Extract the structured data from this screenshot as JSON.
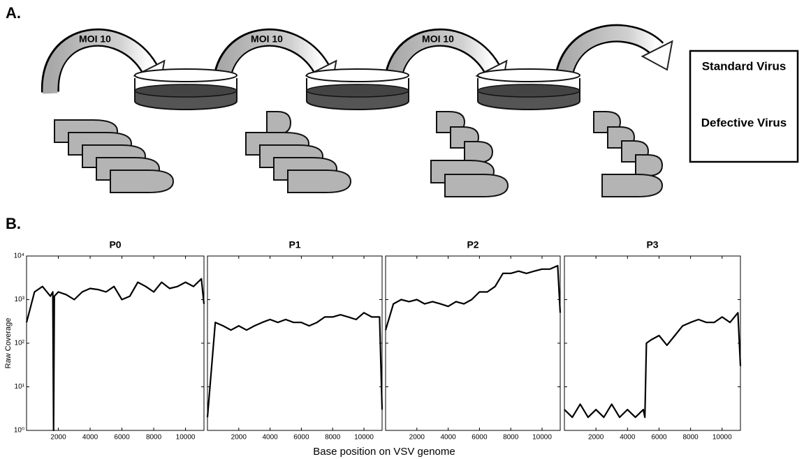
{
  "panel_a": {
    "label": "A.",
    "arrows": [
      "MOI 10",
      "MOI 10",
      "MOI 10"
    ],
    "legend": [
      "Standard Virus",
      "Defective Virus"
    ]
  },
  "panel_b": {
    "label": "B.",
    "xlabel": "Base position on VSV genome",
    "ylabel": "Raw Coverage"
  },
  "chart_data": [
    {
      "type": "line",
      "title": "P0",
      "color": "#000000",
      "log_y": true,
      "x": [
        0,
        500,
        1000,
        1500,
        1650,
        1700,
        1750,
        2000,
        2500,
        3000,
        3500,
        4000,
        4500,
        5000,
        5500,
        6000,
        6500,
        7000,
        7500,
        8000,
        8500,
        9000,
        9500,
        10000,
        10500,
        11000,
        11161
      ],
      "values": [
        300,
        1500,
        2000,
        1200,
        1500,
        1,
        1200,
        1500,
        1300,
        1000,
        1500,
        1800,
        1700,
        1500,
        2000,
        1000,
        1200,
        2500,
        2000,
        1500,
        2500,
        1800,
        2000,
        2500,
        2000,
        3000,
        800
      ],
      "xlim": [
        0,
        11161
      ],
      "xticks": [
        2000,
        4000,
        6000,
        8000,
        10000
      ],
      "ylim": [
        1,
        10000
      ],
      "yticks": [
        {
          "value": 1,
          "label": "10⁰"
        },
        {
          "value": 10,
          "label": "10¹"
        },
        {
          "value": 100,
          "label": "10²"
        },
        {
          "value": 1000,
          "label": "10³"
        },
        {
          "value": 10000,
          "label": "10⁴"
        }
      ]
    },
    {
      "type": "line",
      "title": "P1",
      "color": "#000000",
      "log_y": true,
      "x": [
        0,
        500,
        1000,
        1500,
        2000,
        2500,
        3000,
        3500,
        4000,
        4500,
        5000,
        5500,
        6000,
        6500,
        7000,
        7500,
        8000,
        8500,
        9000,
        9500,
        10000,
        10500,
        11000,
        11161
      ],
      "values": [
        2,
        300,
        250,
        200,
        250,
        200,
        250,
        300,
        350,
        300,
        350,
        300,
        300,
        250,
        300,
        400,
        400,
        450,
        400,
        350,
        500,
        400,
        400,
        3
      ],
      "xlim": [
        0,
        11161
      ],
      "xticks": [
        2000,
        4000,
        6000,
        8000,
        10000
      ],
      "ylim": [
        1,
        10000
      ],
      "yticks": [
        1,
        10,
        100,
        1000,
        10000
      ]
    },
    {
      "type": "line",
      "title": "P2",
      "color": "#000000",
      "log_y": true,
      "x": [
        0,
        500,
        1000,
        1500,
        2000,
        2500,
        3000,
        3500,
        4000,
        4500,
        5000,
        5500,
        6000,
        6500,
        7000,
        7500,
        8000,
        8500,
        9000,
        9500,
        10000,
        10500,
        11000,
        11161
      ],
      "values": [
        200,
        800,
        1000,
        900,
        1000,
        800,
        900,
        800,
        700,
        900,
        800,
        1000,
        1500,
        1500,
        2000,
        4000,
        4000,
        4500,
        4000,
        4500,
        5000,
        5000,
        6000,
        500
      ],
      "xlim": [
        0,
        11161
      ],
      "xticks": [
        2000,
        4000,
        6000,
        8000,
        10000
      ],
      "ylim": [
        1,
        10000
      ],
      "yticks": [
        1,
        10,
        100,
        1000,
        10000
      ]
    },
    {
      "type": "line",
      "title": "P3",
      "color": "#000000",
      "log_y": true,
      "x": [
        0,
        500,
        1000,
        1500,
        2000,
        2500,
        3000,
        3500,
        4000,
        4500,
        5000,
        5100,
        5200,
        5500,
        6000,
        6500,
        7000,
        7500,
        8000,
        8500,
        9000,
        9500,
        10000,
        10500,
        11000,
        11161
      ],
      "values": [
        3,
        2,
        4,
        2,
        3,
        2,
        4,
        2,
        3,
        2,
        3,
        2,
        100,
        120,
        150,
        90,
        150,
        250,
        300,
        350,
        300,
        300,
        400,
        300,
        500,
        30
      ],
      "xlim": [
        0,
        11161
      ],
      "xticks": [
        2000,
        4000,
        6000,
        8000,
        10000
      ],
      "ylim": [
        1,
        10000
      ],
      "yticks": [
        1,
        10,
        100,
        1000,
        10000
      ]
    }
  ]
}
